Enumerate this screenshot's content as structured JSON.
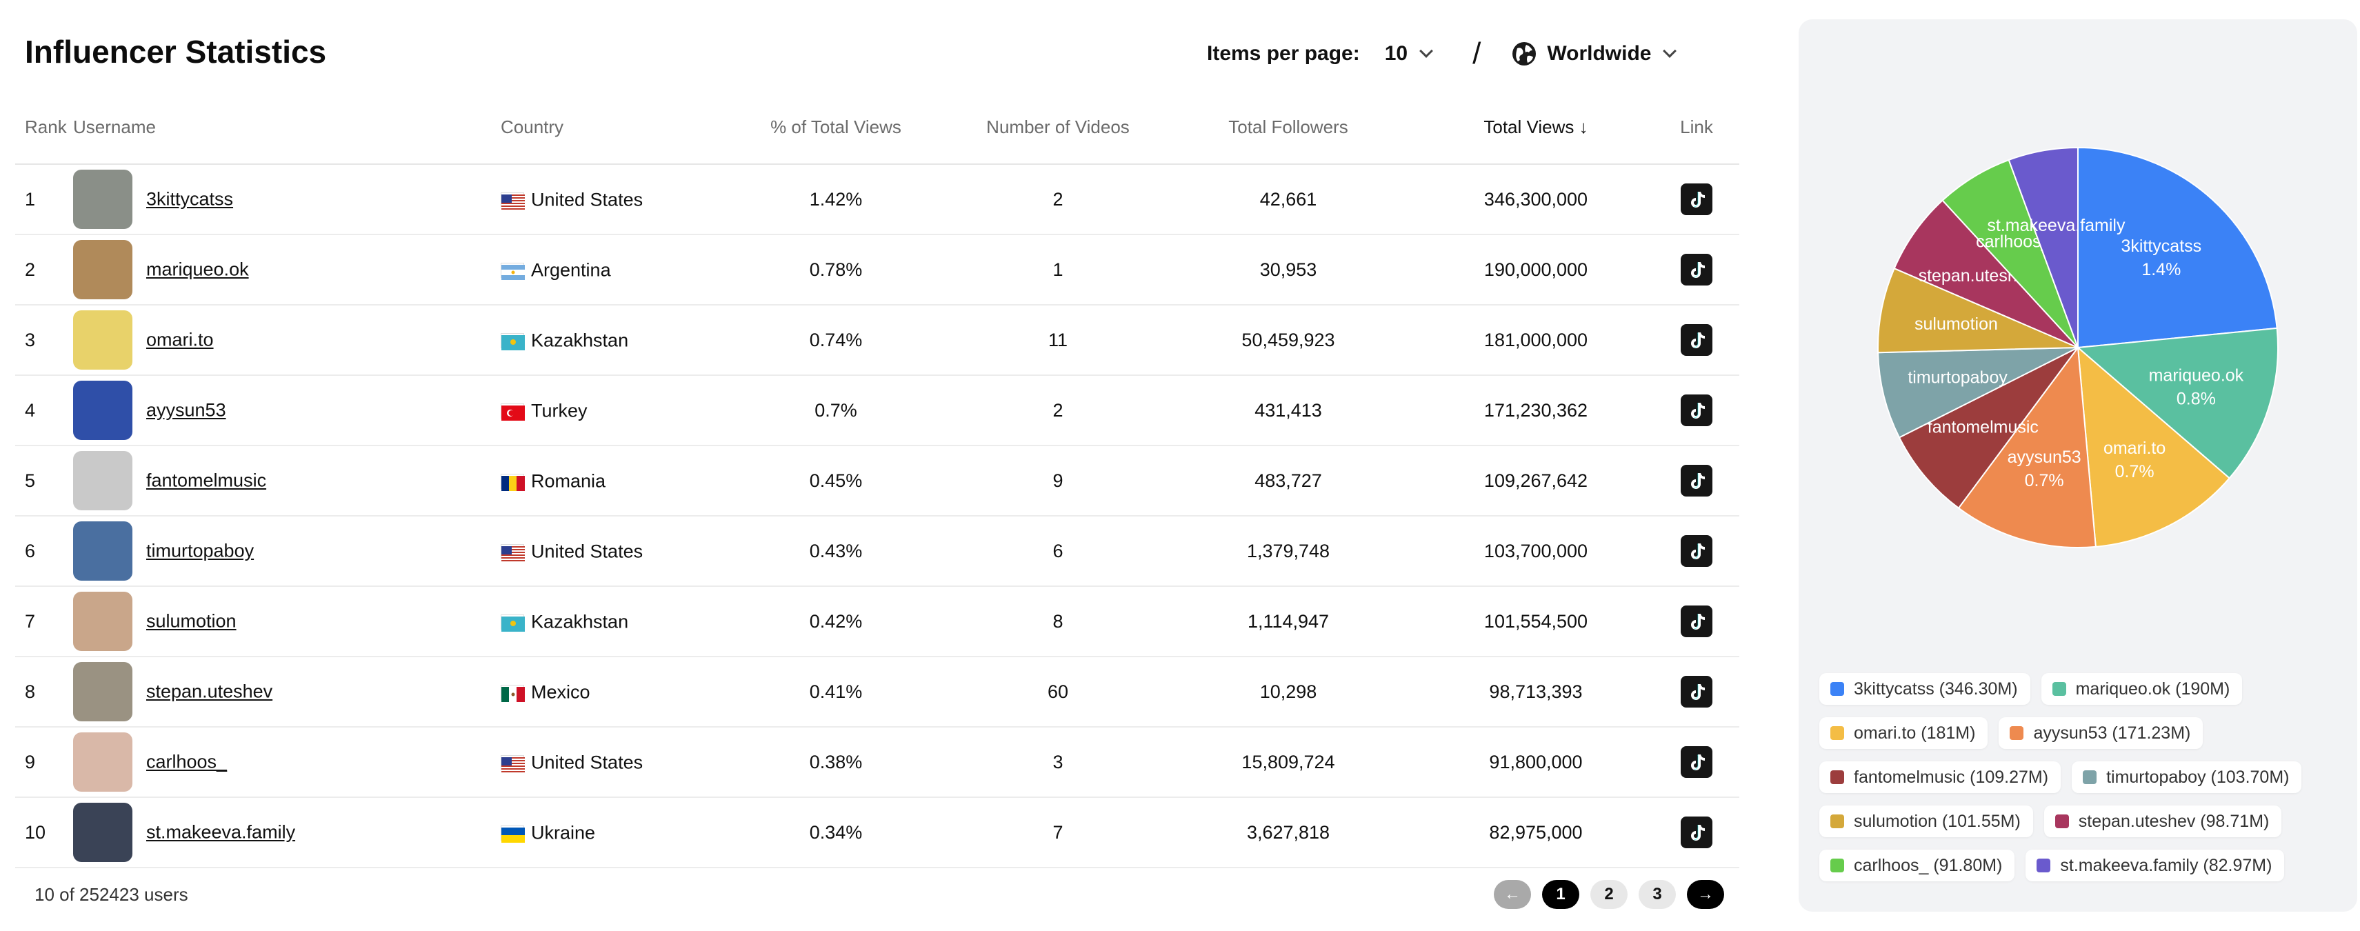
{
  "header": {
    "title": "Influencer Statistics",
    "items_per_page_label": "Items per page:",
    "items_per_page_value": "10",
    "separator": "/",
    "region": "Worldwide"
  },
  "table": {
    "columns": {
      "rank": "Rank",
      "username": "Username",
      "country": "Country",
      "pct_views": "% of Total Views",
      "num_videos": "Number of Videos",
      "followers": "Total Followers",
      "views": "Total Views",
      "link": "Link"
    },
    "sort_indicator": "↓",
    "rows": [
      {
        "rank": "1",
        "username": "3kittycatss",
        "country": "United States",
        "pct": "1.42%",
        "videos": "2",
        "followers": "42,661",
        "views": "346,300,000",
        "avatar_color": "#8a8f88",
        "flag": "us"
      },
      {
        "rank": "2",
        "username": "mariqueo.ok",
        "country": "Argentina",
        "pct": "0.78%",
        "videos": "1",
        "followers": "30,953",
        "views": "190,000,000",
        "avatar_color": "#b08a5a",
        "flag": "ar"
      },
      {
        "rank": "3",
        "username": "omari.to",
        "country": "Kazakhstan",
        "pct": "0.74%",
        "videos": "11",
        "followers": "50,459,923",
        "views": "181,000,000",
        "avatar_color": "#e8d26a",
        "flag": "kz"
      },
      {
        "rank": "4",
        "username": "ayysun53",
        "country": "Turkey",
        "pct": "0.7%",
        "videos": "2",
        "followers": "431,413",
        "views": "171,230,362",
        "avatar_color": "#2f4fa8",
        "flag": "tr"
      },
      {
        "rank": "5",
        "username": "fantomelmusic",
        "country": "Romania",
        "pct": "0.45%",
        "videos": "9",
        "followers": "483,727",
        "views": "109,267,642",
        "avatar_color": "#c9c9c9",
        "flag": "ro"
      },
      {
        "rank": "6",
        "username": "timurtopaboy",
        "country": "United States",
        "pct": "0.43%",
        "videos": "6",
        "followers": "1,379,748",
        "views": "103,700,000",
        "avatar_color": "#4a6fa0",
        "flag": "us"
      },
      {
        "rank": "7",
        "username": "sulumotion",
        "country": "Kazakhstan",
        "pct": "0.42%",
        "videos": "8",
        "followers": "1,114,947",
        "views": "101,554,500",
        "avatar_color": "#c9a68a",
        "flag": "kz"
      },
      {
        "rank": "8",
        "username": "stepan.uteshev",
        "country": "Mexico",
        "pct": "0.41%",
        "videos": "60",
        "followers": "10,298",
        "views": "98,713,393",
        "avatar_color": "#9a9282",
        "flag": "mx"
      },
      {
        "rank": "9",
        "username": "carlhoos_",
        "country": "United States",
        "pct": "0.38%",
        "videos": "3",
        "followers": "15,809,724",
        "views": "91,800,000",
        "avatar_color": "#d9b8a8",
        "flag": "us"
      },
      {
        "rank": "10",
        "username": "st.makeeva.family",
        "country": "Ukraine",
        "pct": "0.34%",
        "videos": "7",
        "followers": "3,627,818",
        "views": "82,975,000",
        "avatar_color": "#3a4356",
        "flag": "ua"
      }
    ]
  },
  "footer": {
    "count_text": "10 of 252423 users",
    "pages": [
      "1",
      "2",
      "3"
    ],
    "prev_label": "←",
    "next_label": "→",
    "current_page": "1"
  },
  "chart_data": {
    "type": "pie",
    "series": [
      {
        "name": "3kittycatss",
        "value": 346.3,
        "pct_label": "1.4%",
        "legend": "3kittycatss (346.30M)",
        "color": "#3b82f6"
      },
      {
        "name": "mariqueo.ok",
        "value": 190.0,
        "pct_label": "0.8%",
        "legend": "mariqueo.ok (190M)",
        "color": "#5ac0a0"
      },
      {
        "name": "omari.to",
        "value": 181.0,
        "pct_label": "0.7%",
        "legend": "omari.to (181M)",
        "color": "#f4bd45"
      },
      {
        "name": "ayysun53",
        "value": 171.23,
        "pct_label": "0.7%",
        "legend": "ayysun53 (171.23M)",
        "color": "#ee8a4f"
      },
      {
        "name": "fantomelmusic",
        "value": 109.27,
        "pct_label": "",
        "legend": "fantomelmusic (109.27M)",
        "color": "#9c3d3d"
      },
      {
        "name": "timurtopaboy",
        "value": 103.7,
        "pct_label": "",
        "legend": "timurtopaboy (103.70M)",
        "color": "#7ea3a8"
      },
      {
        "name": "sulumotion",
        "value": 101.55,
        "pct_label": "",
        "legend": "sulumotion (101.55M)",
        "color": "#d4a83a"
      },
      {
        "name": "stepan.uteshev",
        "value": 98.71,
        "pct_label": "",
        "legend": "stepan.uteshev (98.71M)",
        "color": "#a8365e"
      },
      {
        "name": "carlhoos_",
        "value": 91.8,
        "pct_label": "",
        "legend": "carlhoos_ (91.80M)",
        "color": "#66cc4c"
      },
      {
        "name": "st.makeeva.family",
        "value": 82.97,
        "pct_label": "",
        "legend": "st.makeeva.family (82.97M)",
        "color": "#6a5acd"
      }
    ]
  }
}
